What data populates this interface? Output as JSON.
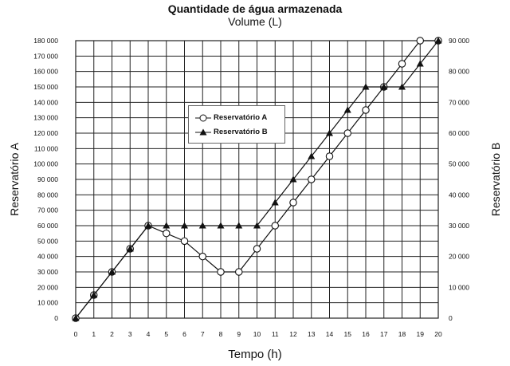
{
  "chart_data": {
    "type": "line",
    "title": "Quantidade de água armazenada",
    "subtitle": "Volume (L)",
    "xlabel": "Tempo (h)",
    "ylabel_left": "Reservatório A",
    "ylabel_right": "Reservatório B",
    "x": [
      0,
      1,
      2,
      3,
      4,
      5,
      6,
      7,
      8,
      9,
      10,
      11,
      12,
      13,
      14,
      15,
      16,
      17,
      18,
      19,
      20
    ],
    "x_ticks": [
      "0",
      "1",
      "2",
      "3",
      "4",
      "5",
      "6",
      "7",
      "8",
      "9",
      "10",
      "11",
      "12",
      "13",
      "14",
      "15",
      "16",
      "17",
      "18",
      "19",
      "20"
    ],
    "xlim": [
      0,
      20
    ],
    "ylim_left": [
      0,
      180000
    ],
    "ylim_right": [
      0,
      90000
    ],
    "y_ticks_left": [
      "0",
      "10 000",
      "20 000",
      "30 000",
      "40 000",
      "50 000",
      "60 000",
      "70 000",
      "80 000",
      "90 000",
      "100 000",
      "110 000",
      "120 000",
      "130 000",
      "140 000",
      "150 000",
      "160 000",
      "170 000",
      "180 000"
    ],
    "y_ticks_right": [
      "0",
      "10 000",
      "20 000",
      "30 000",
      "40 000",
      "50 000",
      "60 000",
      "70 000",
      "80 000",
      "90 000"
    ],
    "grid": true,
    "legend_position": "center-left",
    "series": [
      {
        "name": "Reservatório A",
        "axis": "left",
        "marker": "open-circle",
        "values": [
          0,
          15000,
          30000,
          45000,
          60000,
          55000,
          50000,
          40000,
          30000,
          30000,
          45000,
          60000,
          75000,
          90000,
          105000,
          120000,
          135000,
          150000,
          165000,
          180000,
          180000
        ]
      },
      {
        "name": "Reservatório B",
        "axis": "right",
        "marker": "filled-triangle",
        "values": [
          0,
          7500,
          15000,
          22500,
          30000,
          30000,
          30000,
          30000,
          30000,
          30000,
          30000,
          37500,
          45000,
          52500,
          60000,
          67500,
          75000,
          75000,
          75000,
          82500,
          90000
        ]
      }
    ]
  },
  "colors": {
    "line": "#111111",
    "grid": "#222222",
    "background": "#ffffff"
  }
}
